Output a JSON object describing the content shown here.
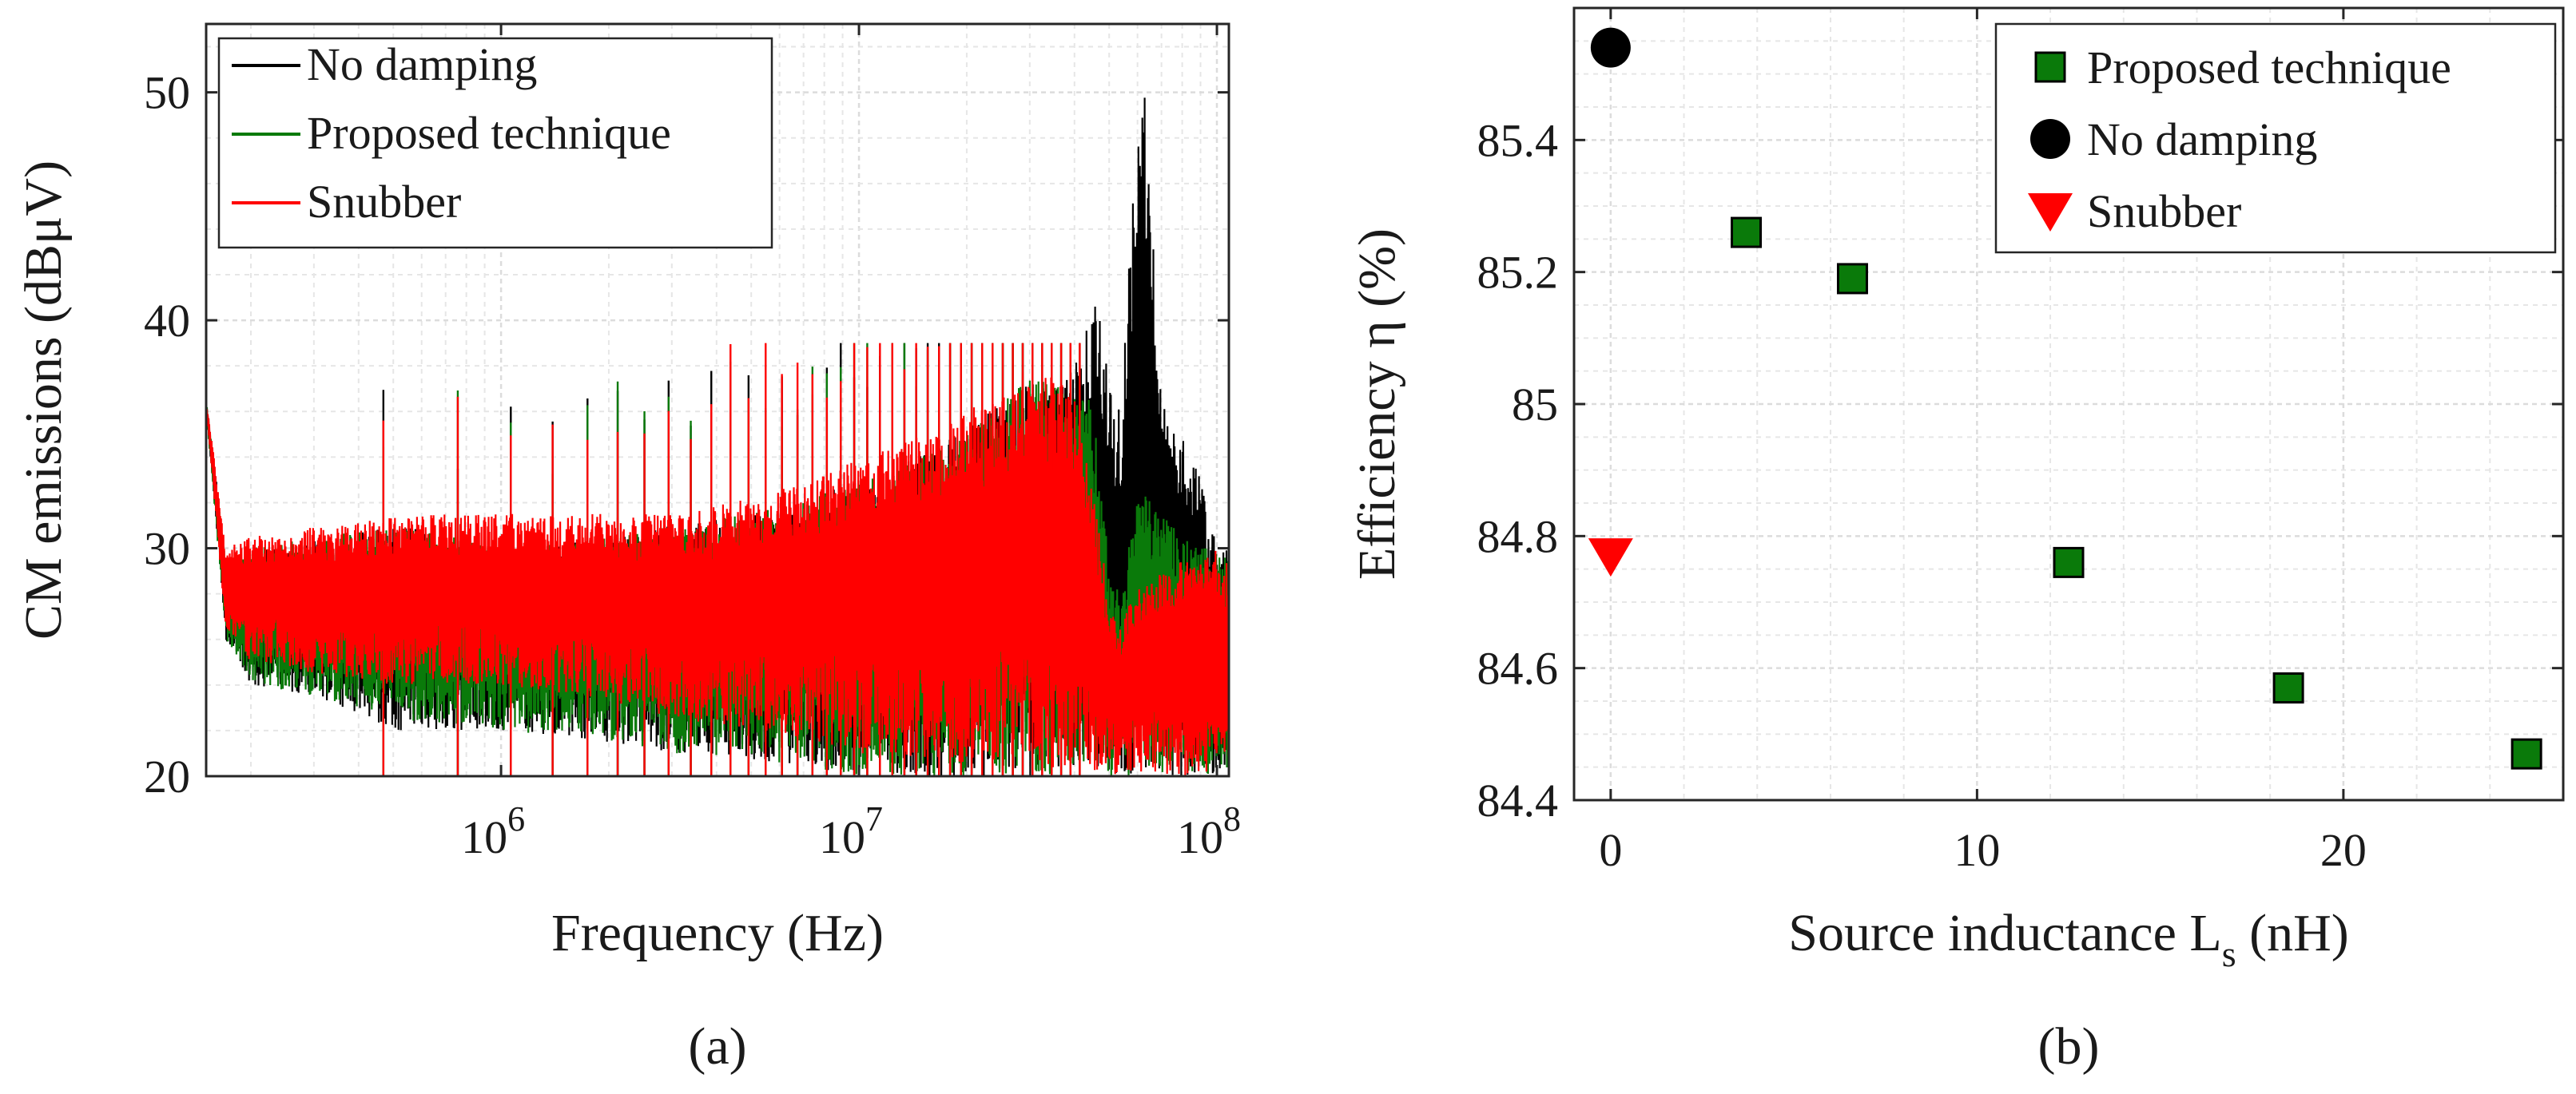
{
  "chart_data": [
    {
      "type": "line",
      "panel_label": "(a)",
      "xlabel": "Frequency (Hz)",
      "ylabel": "CM emissions (dBμV)",
      "xscale": "log",
      "xlim": [
        150000,
        108000000
      ],
      "ylim": [
        20,
        53
      ],
      "xticks": [
        1000000,
        10000000,
        100000000
      ],
      "xtick_labels": [
        "10",
        "10",
        "10"
      ],
      "xtick_exponents": [
        "6",
        "7",
        "8"
      ],
      "yticks": [
        20,
        30,
        40,
        50
      ],
      "ytick_labels": [
        "20",
        "30",
        "40",
        "50"
      ],
      "grid": true,
      "legend_position": "top-left",
      "series": [
        {
          "name": "No damping",
          "color": "#000000",
          "envelope_x": [
            150000,
            170000,
            200000,
            300000,
            500000,
            1000000,
            3000000,
            10000000,
            30000000,
            40000000,
            44000000,
            47000000,
            50000000,
            54000000,
            58000000,
            62000000,
            65000000,
            70000000,
            80000000,
            90000000,
            100000000,
            108000000
          ],
          "envelope_upper": [
            36.5,
            29.5,
            30,
            30.5,
            31,
            30,
            31,
            33,
            37.5,
            38,
            40,
            41.5,
            37,
            36,
            45,
            51.5,
            46,
            37,
            35,
            33,
            30,
            30
          ],
          "envelope_lower": [
            36,
            26,
            24,
            23.5,
            22,
            22,
            21,
            20,
            20,
            20,
            20,
            20,
            20,
            20,
            20,
            20,
            20,
            20,
            20,
            20,
            20,
            20
          ]
        },
        {
          "name": "Proposed technique",
          "color": "#0a7a0a",
          "envelope_x": [
            150000,
            170000,
            200000,
            300000,
            500000,
            1000000,
            3000000,
            10000000,
            30000000,
            40000000,
            44000000,
            47000000,
            50000000,
            54000000,
            58000000,
            62000000,
            65000000,
            70000000,
            80000000,
            90000000,
            100000000,
            108000000
          ],
          "envelope_upper": [
            36.5,
            29.5,
            30,
            30.5,
            31,
            30,
            31,
            33,
            37.5,
            37,
            36.5,
            34,
            29,
            28,
            31,
            33,
            32,
            31.5,
            30.5,
            30,
            30,
            29.5
          ],
          "envelope_lower": [
            36,
            26,
            24,
            23.5,
            22.5,
            22,
            21,
            20,
            20,
            20,
            20,
            20,
            20,
            20,
            20,
            20,
            20,
            20,
            20,
            20,
            20,
            20
          ]
        },
        {
          "name": "Snubber",
          "color": "#ff0000",
          "envelope_x": [
            150000,
            170000,
            200000,
            300000,
            500000,
            1000000,
            3000000,
            10000000,
            30000000,
            40000000,
            44000000,
            47000000,
            50000000,
            54000000,
            58000000,
            62000000,
            65000000,
            70000000,
            80000000,
            90000000,
            100000000,
            108000000
          ],
          "envelope_upper": [
            36.5,
            30,
            30.5,
            31,
            31.5,
            31.5,
            31.5,
            34,
            38,
            37,
            33,
            31,
            27.5,
            26.5,
            28,
            28.5,
            29,
            29,
            29.5,
            29.5,
            30,
            29.5
          ],
          "envelope_lower": [
            36,
            26.5,
            25,
            24.5,
            24,
            24,
            22.5,
            21,
            20,
            20,
            20,
            20,
            20,
            20,
            20,
            20,
            20,
            20,
            20,
            20,
            20,
            20
          ]
        }
      ]
    },
    {
      "type": "scatter",
      "panel_label": "(b)",
      "xlabel": "Source inductance L",
      "xlabel_subscript": "s",
      "xlabel_suffix": " (nH)",
      "ylabel": "Efficiency η (%)",
      "xlim": [
        -1,
        26
      ],
      "ylim": [
        84.4,
        85.6
      ],
      "xticks": [
        0,
        10,
        20
      ],
      "xtick_labels": [
        "0",
        "10",
        "20"
      ],
      "yticks": [
        84.4,
        84.6,
        84.8,
        85.0,
        85.2,
        85.4
      ],
      "ytick_labels": [
        "84.4",
        "84.6",
        "84.8",
        "85",
        "85.2",
        "85.4"
      ],
      "grid": true,
      "legend_position": "top-right",
      "series": [
        {
          "name": "Proposed technique",
          "marker": "square",
          "color": "#0a7a0a",
          "edge_color": "#000000",
          "x": [
            3.7,
            6.6,
            12.5,
            18.5,
            25
          ],
          "y": [
            85.26,
            85.19,
            84.76,
            84.57,
            84.47
          ]
        },
        {
          "name": "No damping",
          "marker": "circle",
          "color": "#000000",
          "x": [
            0
          ],
          "y": [
            85.54
          ]
        },
        {
          "name": "Snubber",
          "marker": "triangle-down",
          "color": "#ff0000",
          "x": [
            0
          ],
          "y": [
            84.77
          ]
        }
      ]
    }
  ]
}
